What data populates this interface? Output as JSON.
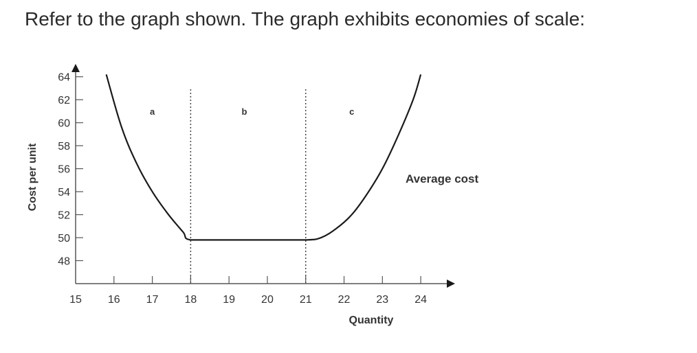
{
  "question": {
    "text": "Refer to the graph shown. The graph exhibits economies of scale:"
  },
  "chart_data": {
    "type": "line",
    "title": "",
    "xlabel": "Quantity",
    "ylabel": "Cost per unit",
    "xlim": [
      15,
      24.5
    ],
    "ylim": [
      46,
      65
    ],
    "x_ticks": [
      15,
      16,
      17,
      18,
      19,
      20,
      21,
      22,
      23,
      24
    ],
    "y_ticks": [
      48,
      50,
      52,
      54,
      56,
      58,
      60,
      62,
      64
    ],
    "grid": false,
    "series": [
      {
        "name": "Average cost",
        "x": [
          15.8,
          16.2,
          16.6,
          17.0,
          17.4,
          17.8,
          18.0,
          19.0,
          20.0,
          21.0,
          21.4,
          21.8,
          22.2,
          22.6,
          23.0,
          23.4,
          23.8,
          24.0
        ],
        "y": [
          64.2,
          59.6,
          56.4,
          54.0,
          52.1,
          50.5,
          49.8,
          49.8,
          49.8,
          49.8,
          50.0,
          50.8,
          52.0,
          53.8,
          56.0,
          58.8,
          62.0,
          64.2
        ]
      }
    ],
    "dividers": [
      18,
      21
    ],
    "regions": [
      {
        "label": "a",
        "x": 17.0,
        "y": 61
      },
      {
        "label": "b",
        "x": 19.4,
        "y": 61
      },
      {
        "label": "c",
        "x": 22.2,
        "y": 61
      }
    ],
    "colors": {
      "curve": "#1a1a1a",
      "axis": "#555555",
      "divider": "#444444"
    }
  }
}
